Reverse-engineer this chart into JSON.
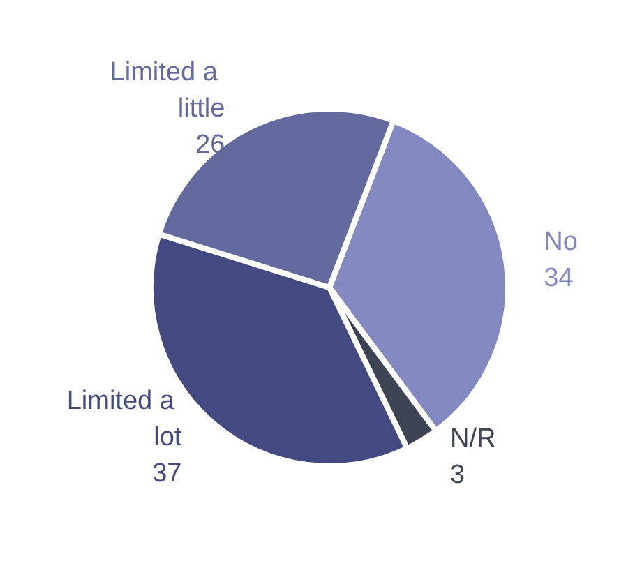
{
  "chart_data": {
    "type": "pie",
    "categories": [
      "No",
      "N/R",
      "Limited a lot",
      "Limited a little"
    ],
    "values": [
      34,
      3,
      37,
      26
    ],
    "colors": [
      "#8288c0",
      "#3d4454",
      "#434a82",
      "#636b9e"
    ],
    "data_labels": true
  }
}
